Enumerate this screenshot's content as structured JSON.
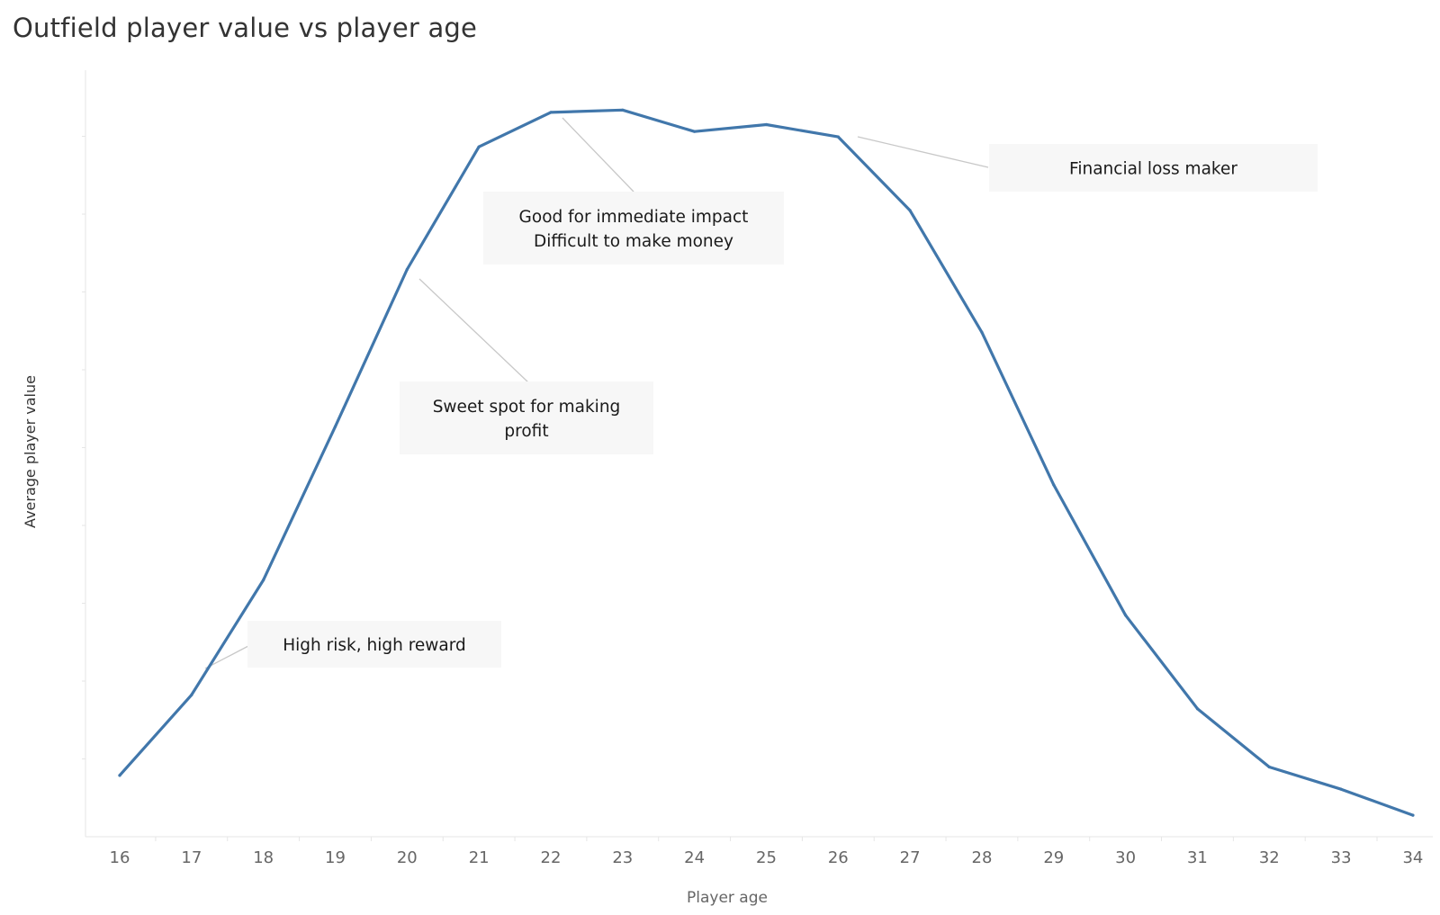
{
  "title": "Outfield player value vs player age",
  "chart_data": {
    "type": "line",
    "title": "Outfield player value vs player age",
    "xlabel": "Player age",
    "ylabel": "Average player value",
    "x": [
      16,
      17,
      18,
      19,
      20,
      21,
      22,
      23,
      24,
      25,
      26,
      27,
      28,
      29,
      30,
      31,
      32,
      33,
      34
    ],
    "series": [
      {
        "color": "#4177ab",
        "values": [
          0.08,
          0.185,
          0.335,
          0.535,
          0.74,
          0.9,
          0.945,
          0.948,
          0.92,
          0.929,
          0.913,
          0.817,
          0.658,
          0.459,
          0.289,
          0.167,
          0.091,
          0.062,
          0.028
        ]
      }
    ],
    "xlim": [
      15.5,
      34
    ],
    "ylim": [
      0,
      1
    ],
    "y_tick_labels_shown": false,
    "grid": false,
    "annotations": [
      {
        "lines": [
          "High risk, high reward"
        ],
        "x": 17
      },
      {
        "lines": [
          "Sweet spot for making",
          "profit"
        ],
        "x": 20
      },
      {
        "lines": [
          "Good for immediate impact",
          "Difficult to make money"
        ],
        "x": 22
      },
      {
        "lines": [
          "Financial loss maker"
        ],
        "x": 26
      }
    ]
  },
  "colors": {
    "line": "#4177ab",
    "annotation_bg": "#f7f7f7",
    "axis": "#e6e6e6",
    "leader": "#c8c8c8"
  }
}
